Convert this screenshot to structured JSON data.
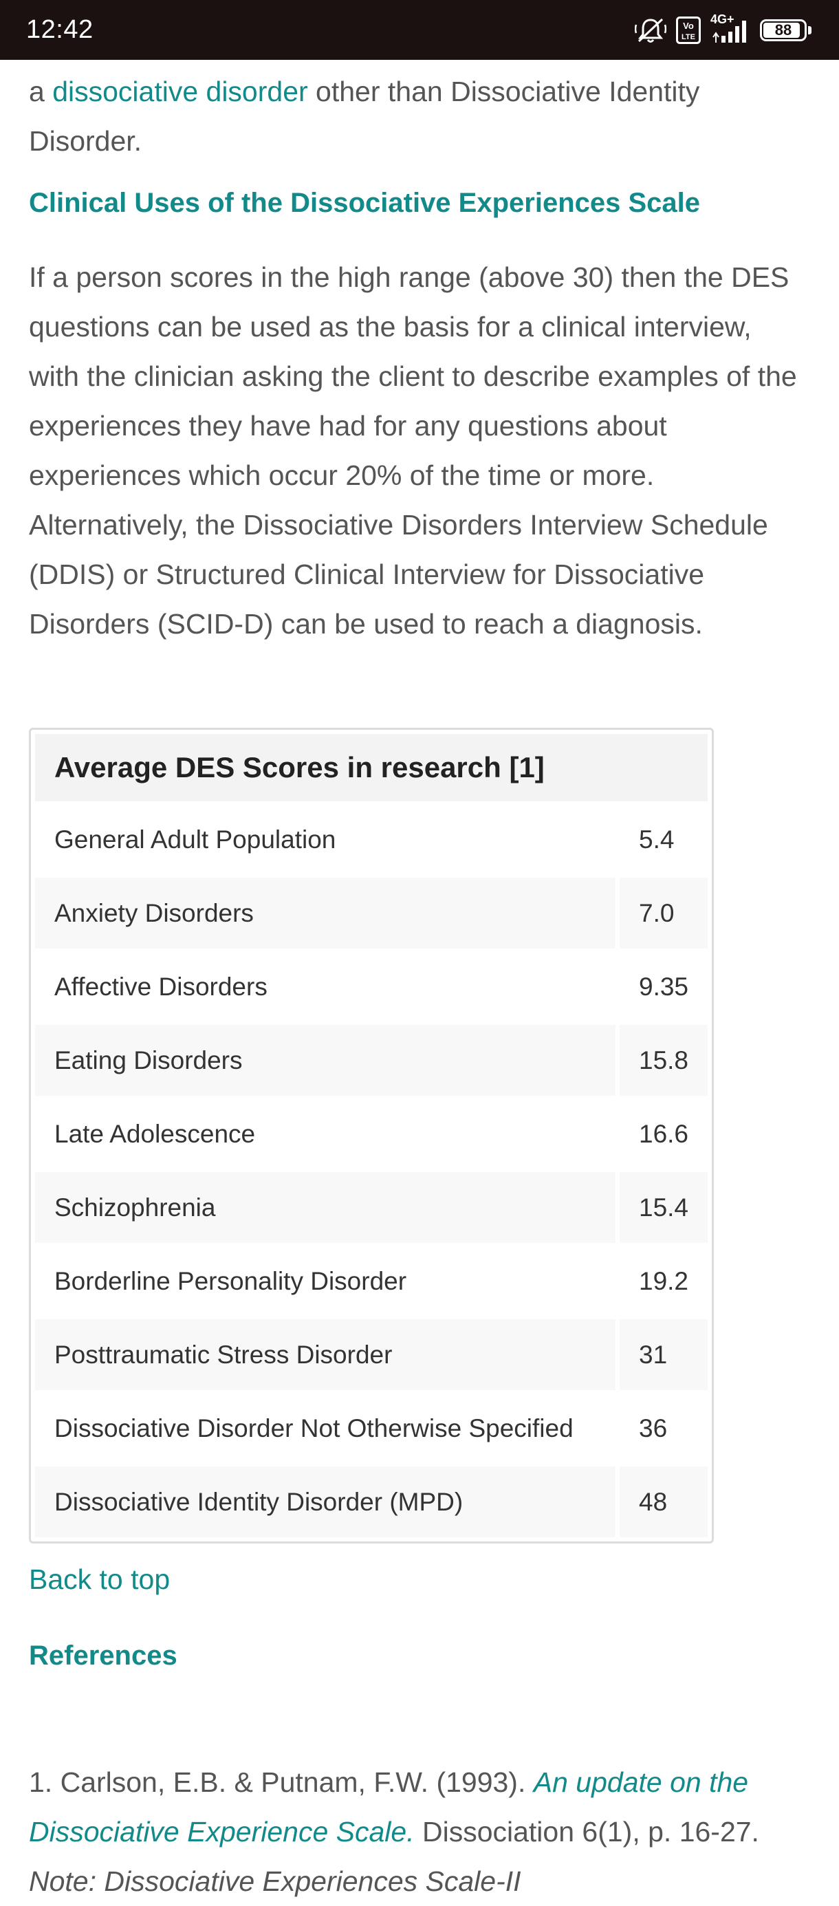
{
  "status_bar": {
    "time": "12:42",
    "icons": [
      "muted-bell-icon",
      "volte-icon",
      "signal-icon",
      "battery-icon"
    ],
    "network": "4G+",
    "volte": "Vo LTE",
    "battery": "88"
  },
  "intro": {
    "prefix": "a ",
    "link": "dissociative disorder",
    "suffix": " other than Dissociative Identity Disorder."
  },
  "section_heading": "Clinical Uses of the Dissociative Experiences Scale",
  "body_paragraph": "If a person scores in the high range (above 30) then the DES questions can be used as the basis for a clinical interview, with the clinician asking the client to describe examples of the experiences they have had for any questions about experiences which occur 20% of the time or more. Alternatively, the Dissociative Disorders Interview Schedule (DDIS) or Structured Clinical Interview for Dissociative Disorders (SCID-D) can be used to reach a diagnosis.",
  "table": {
    "title": "Average DES Scores in research [1]",
    "rows": [
      {
        "name": "General Adult Population",
        "value": "5.4"
      },
      {
        "name": "Anxiety Disorders",
        "value": "7.0"
      },
      {
        "name": "Affective Disorders",
        "value": "9.35"
      },
      {
        "name": "Eating Disorders",
        "value": "15.8"
      },
      {
        "name": "Late Adolescence",
        "value": "16.6"
      },
      {
        "name": "Schizophrenia",
        "value": "15.4"
      },
      {
        "name": "Borderline Personality Disorder",
        "value": "19.2"
      },
      {
        "name": "Posttraumatic Stress Disorder",
        "value": "31"
      },
      {
        "name": "Dissociative Disorder Not Otherwise Specified",
        "value": "36"
      },
      {
        "name": "Dissociative Identity Disorder (MPD)",
        "value": "48"
      }
    ]
  },
  "back_to_top": "Back to top",
  "references_heading": "References",
  "reference_1": {
    "prefix": "1. Carlson, E.B. & Putnam, F.W. (1993). ",
    "title": "An update on the Dissociative Experience Scale.",
    "middle": " Dissociation 6(1), p. 16-27. ",
    "note": "Note: Dissociative Experiences Scale-II"
  },
  "colors": {
    "accent": "#138a8a",
    "status_bar_bg": "#1b1111",
    "body_text": "#555555"
  }
}
